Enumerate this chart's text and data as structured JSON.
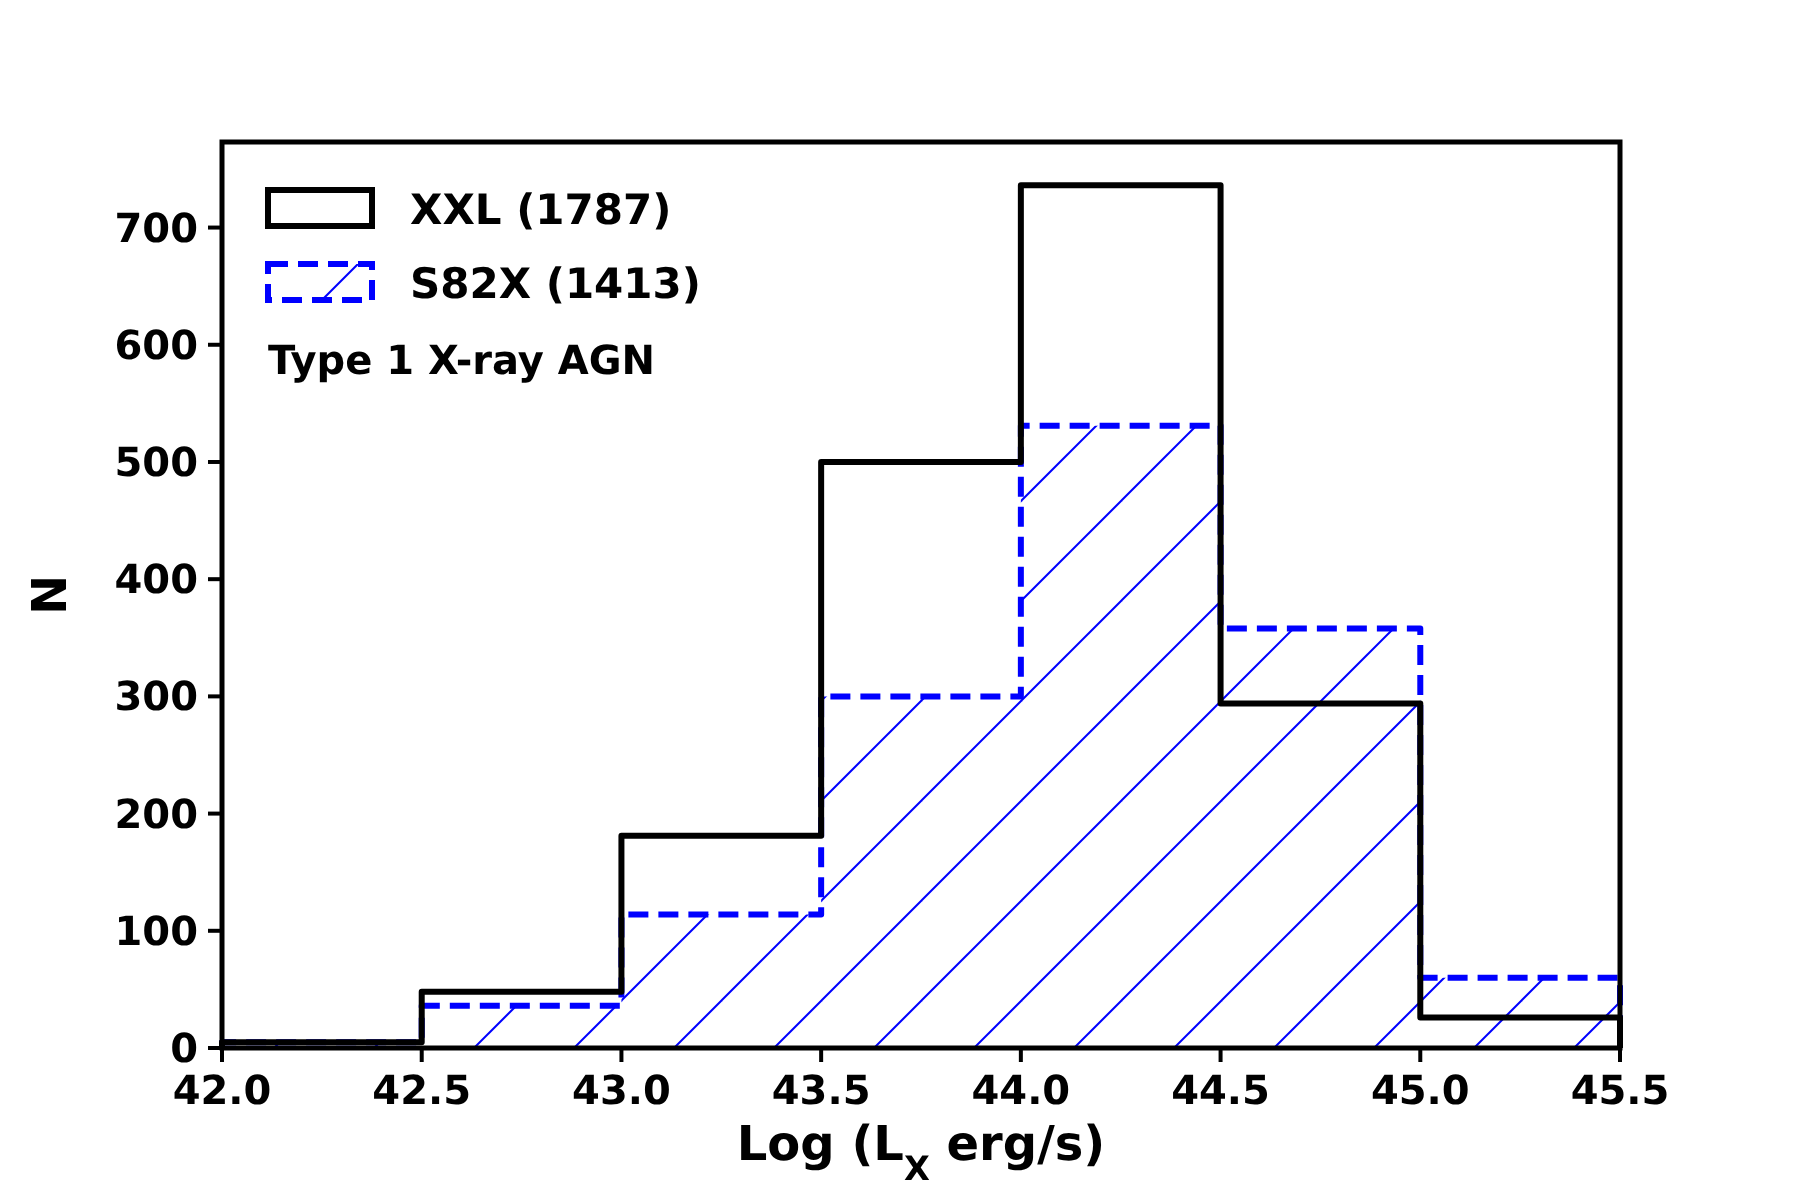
{
  "chart_data": {
    "type": "histogram",
    "xlabel": "Log (L$_{X}$ erg/s)",
    "ylabel": "N",
    "bins": [
      42,
      42.5,
      43,
      43.5,
      44,
      44.5,
      45,
      45.5
    ],
    "series": [
      {
        "name": "XXL (1787)",
        "color": "#000000",
        "line_style": "solid",
        "values": [
          5,
          48,
          181,
          500,
          736,
          294,
          26
        ]
      },
      {
        "name": "S82X (1413)",
        "color": "#0000ff",
        "line_style": "dashed",
        "values": [
          5,
          36,
          114,
          300,
          531,
          358,
          60
        ]
      }
    ],
    "xlim": [
      42,
      45.5
    ],
    "xticks": [
      {
        "value": 42,
        "label": "42.0"
      },
      {
        "value": 42.5,
        "label": "42.5"
      },
      {
        "value": 43,
        "label": "43.0"
      },
      {
        "value": 43.5,
        "label": "43.5"
      },
      {
        "value": 44,
        "label": "44.0"
      },
      {
        "value": 44.5,
        "label": "44.5"
      },
      {
        "value": 45,
        "label": "45.0"
      },
      {
        "value": 45.5,
        "label": "45.5"
      }
    ],
    "ylim": [
      0,
      773
    ],
    "yticks": [
      0,
      100,
      200,
      300,
      400,
      500,
      600,
      700
    ],
    "legend": "top left",
    "grid": false,
    "annotations": [
      "Type 1 X-ray AGN"
    ]
  }
}
